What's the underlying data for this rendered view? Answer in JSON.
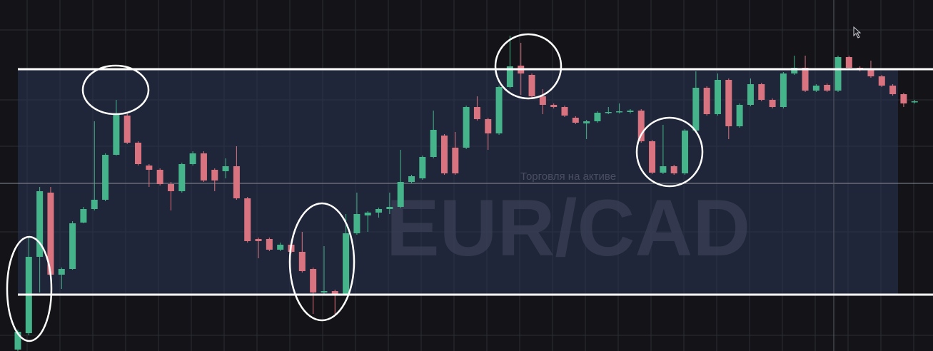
{
  "chart_data": {
    "type": "candlestick",
    "title": "EUR/CAD",
    "subtitle": "Торговля на активе",
    "open": [
      10,
      33,
      140,
      230,
      115,
      123,
      188,
      207,
      220,
      283,
      338,
      300,
      268,
      262,
      242,
      232,
      270,
      285,
      262,
      260,
      267,
      222,
      165,
      165,
      150,
      157,
      147,
      123,
      90,
      92,
      88,
      173,
      198,
      202,
      207,
      210,
      245,
      250,
      280,
      310,
      293,
      293,
      350,
      333,
      313,
      378,
      408,
      395,
      365,
      353,
      350,
      335,
      327,
      330,
      342,
      343,
      343,
      345,
      302,
      258,
      267,
      257,
      317,
      377,
      340,
      388,
      323,
      353,
      382,
      360,
      350,
      397,
      405,
      373,
      381,
      373,
      420,
      405,
      403,
      393,
      380,
      368,
      357
    ],
    "high": [
      38,
      167,
      238,
      238,
      125,
      190,
      210,
      330,
      285,
      360,
      342,
      302,
      270,
      264,
      245,
      272,
      288,
      288,
      264,
      278,
      295,
      224,
      167,
      167,
      160,
      160,
      175,
      125,
      155,
      94,
      200,
      230,
      204,
      209,
      230,
      290,
      255,
      282,
      345,
      312,
      315,
      352,
      365,
      335,
      380,
      450,
      440,
      397,
      375,
      355,
      352,
      337,
      332,
      344,
      350,
      355,
      347,
      347,
      304,
      325,
      269,
      319,
      400,
      379,
      397,
      390,
      355,
      390,
      384,
      362,
      399,
      422,
      422,
      382,
      383,
      422,
      422,
      407,
      415,
      395,
      382,
      370,
      360
    ],
    "low": [
      8,
      30,
      90,
      115,
      95,
      122,
      187,
      205,
      218,
      282,
      298,
      268,
      238,
      240,
      205,
      230,
      268,
      245,
      232,
      250,
      220,
      160,
      138,
      148,
      148,
      145,
      118,
      60,
      88,
      60,
      86,
      171,
      175,
      195,
      200,
      208,
      243,
      248,
      278,
      255,
      255,
      291,
      331,
      290,
      311,
      376,
      367,
      363,
      340,
      348,
      336,
      326,
      305,
      328,
      340,
      341,
      341,
      300,
      256,
      256,
      255,
      255,
      315,
      338,
      338,
      305,
      321,
      351,
      358,
      348,
      348,
      395,
      371,
      371,
      371,
      371,
      403,
      400,
      391,
      378,
      366,
      350,
      355
    ],
    "close": [
      35,
      140,
      232,
      115,
      123,
      187,
      207,
      220,
      283,
      340,
      300,
      270,
      262,
      242,
      232,
      270,
      285,
      247,
      247,
      267,
      222,
      162,
      162,
      150,
      157,
      147,
      120,
      90,
      92,
      88,
      173,
      200,
      202,
      207,
      210,
      245,
      253,
      280,
      318,
      257,
      257,
      350,
      333,
      313,
      378,
      407,
      397,
      365,
      353,
      350,
      338,
      328,
      330,
      342,
      343,
      344,
      345,
      302,
      258,
      267,
      257,
      317,
      377,
      340,
      388,
      323,
      353,
      382,
      360,
      350,
      397,
      405,
      373,
      380,
      373,
      420,
      405,
      402,
      393,
      380,
      368,
      355,
      358
    ],
    "up_color": "#45b48b",
    "down_color": "#d9737f",
    "ylim": [
      8,
      500
    ]
  }
}
